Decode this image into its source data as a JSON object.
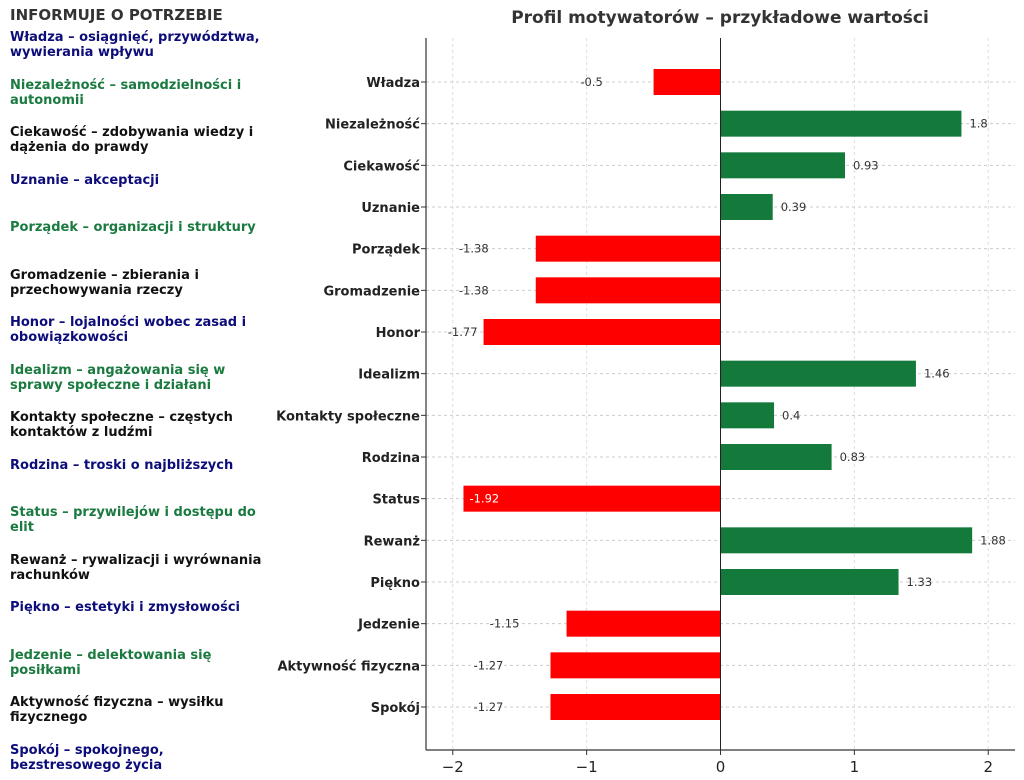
{
  "left_panel": {
    "title": "INFORMUJE O POTRZEBIE",
    "items": [
      {
        "text": "Władza – osiągnięć, przywództwa, wywierania wpływu",
        "color": "#0d0d7a"
      },
      {
        "text": "Niezależność – samodzielności i autonomii",
        "color": "#1a7a40"
      },
      {
        "text": "Ciekawość – zdobywania wiedzy i dążenia do prawdy",
        "color": "#111111"
      },
      {
        "text": "Uznanie – akceptacji",
        "color": "#0d0d7a"
      },
      {
        "text": "Porządek – organizacji i struktury",
        "color": "#1a7a40"
      },
      {
        "text": "Gromadzenie – zbierania i przechowywania rzeczy",
        "color": "#111111"
      },
      {
        "text": "Honor – lojalności wobec zasad i obowiązkowości",
        "color": "#0d0d7a"
      },
      {
        "text": "Idealizm – angażowania się w sprawy społeczne i działani",
        "color": "#1a7a40"
      },
      {
        "text": "Kontakty społeczne – częstych kontaktów z ludźmi",
        "color": "#111111"
      },
      {
        "text": "Rodzina – troski o najbliższych",
        "color": "#0d0d7a"
      },
      {
        "text": "Status – przywilejów i dostępu do elit",
        "color": "#1a7a40"
      },
      {
        "text": "Rewanż – rywalizacji i wyrównania rachunków",
        "color": "#111111"
      },
      {
        "text": "Piękno – estetyki i zmysłowości",
        "color": "#0d0d7a"
      },
      {
        "text": "Jedzenie – delektowania się posiłkami",
        "color": "#1a7a40"
      },
      {
        "text": "Aktywność fizyczna – wysiłku fizycznego",
        "color": "#111111"
      },
      {
        "text": "Spokój – spokojnego, bezstresowego życia",
        "color": "#0d0d7a"
      }
    ]
  },
  "chart_data": {
    "type": "bar",
    "orientation": "horizontal",
    "title": "Profil motywatorów – przykładowe wartości",
    "xlabel": "",
    "ylabel": "",
    "categories": [
      "Władza",
      "Niezależność",
      "Ciekawość",
      "Uznanie",
      "Porządek",
      "Gromadzenie",
      "Honor",
      "Idealizm",
      "Kontakty społeczne",
      "Rodzina",
      "Status",
      "Rewanż",
      "Piękno",
      "Jedzenie",
      "Aktywność fizyczna",
      "Spokój"
    ],
    "values": [
      -0.5,
      1.8,
      0.93,
      0.39,
      -1.38,
      -1.38,
      -1.77,
      1.46,
      0.4,
      0.83,
      -1.92,
      1.88,
      1.33,
      -1.15,
      -1.27,
      -1.27
    ],
    "value_labels": [
      "-0.5",
      "1.8",
      "0.93",
      "0.39",
      "-1.38",
      "-1.38",
      "-1.77",
      "1.46",
      "0.4",
      "0.83",
      "-1.92",
      "1.88",
      "1.33",
      "-1.15",
      "-1.27",
      "-1.27"
    ],
    "xlim": [
      -2.2,
      2.2
    ],
    "xticks": [
      -2,
      -1,
      0,
      1,
      2
    ],
    "xtick_labels": [
      "−2",
      "−1",
      "0",
      "1",
      "2"
    ],
    "grid": true,
    "colors": {
      "positive": "#137a3c",
      "negative": "#ff0000"
    }
  }
}
